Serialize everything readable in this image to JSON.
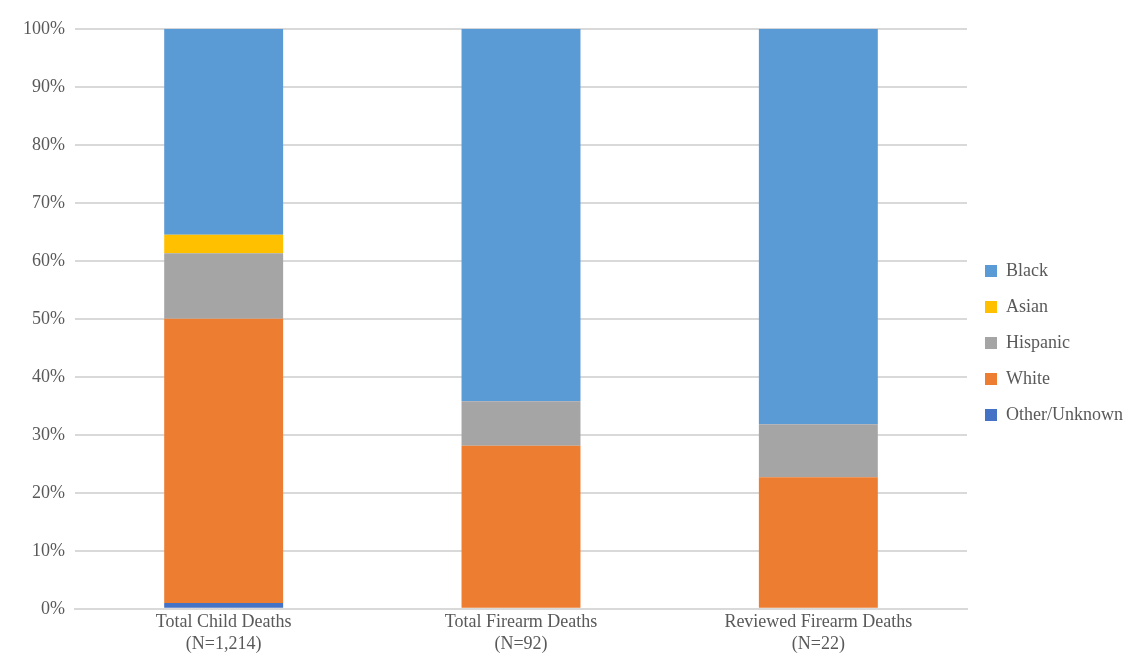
{
  "chart_data": {
    "type": "bar",
    "stacked": true,
    "categories": [
      "Total Child Deaths\n(N=1,214)",
      "Total Firearm Deaths\n(N=92)",
      "Reviewed Firearm Deaths\n(N=22)"
    ],
    "series": [
      {
        "name": "Other/Unknown",
        "color": "#4472c4",
        "values": [
          1,
          0,
          0
        ]
      },
      {
        "name": "White",
        "color": "#ed7d31",
        "values": [
          49,
          28.1,
          22.7
        ]
      },
      {
        "name": "Hispanic",
        "color": "#a5a5a5",
        "values": [
          11.3,
          7.7,
          9.1
        ]
      },
      {
        "name": "Asian",
        "color": "#ffc000",
        "values": [
          3.2,
          0,
          0
        ]
      },
      {
        "name": "Black",
        "color": "#5b9bd5",
        "values": [
          35.5,
          64.2,
          68.2
        ]
      }
    ],
    "ylim": [
      0,
      100
    ],
    "yticks": [
      {
        "value": 0,
        "label": "0%"
      },
      {
        "value": 10,
        "label": "10%"
      },
      {
        "value": 20,
        "label": "20%"
      },
      {
        "value": 30,
        "label": "30%"
      },
      {
        "value": 40,
        "label": "40%"
      },
      {
        "value": 50,
        "label": "50%"
      },
      {
        "value": 60,
        "label": "60%"
      },
      {
        "value": 70,
        "label": "70%"
      },
      {
        "value": 80,
        "label": "80%"
      },
      {
        "value": 90,
        "label": "90%"
      },
      {
        "value": 100,
        "label": "100%"
      }
    ],
    "grid": "y",
    "legend": "right"
  }
}
